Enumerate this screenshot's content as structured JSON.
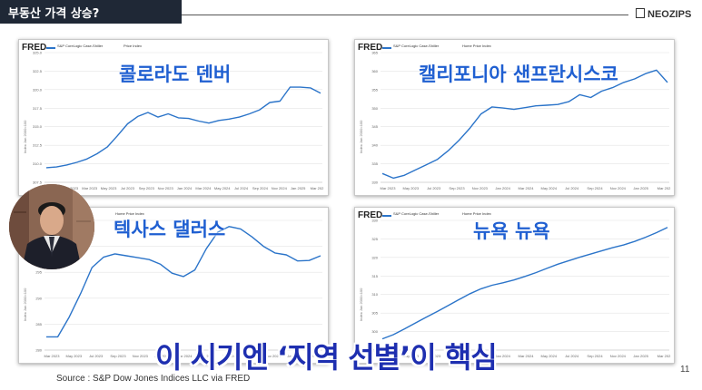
{
  "header": {
    "title": "부동산 가격 상승?",
    "brand": "NEOZIPS"
  },
  "caption": "이 시기엔 ‘지역 선별’이 핵심",
  "source": "Source : S&P Dow Jones Indices LLC via FRED",
  "page_number": "11",
  "colors": {
    "line": "#2b74c9",
    "caption": "#1e2fb0",
    "label": "#1f5fd1",
    "header_bg": "#1f2836"
  },
  "charts": [
    {
      "label": "콜로라도 덴버",
      "fred": "FRED",
      "series_name": "S&P CoreLogic Case-Shiller",
      "legend_extra": "Price Index",
      "x_ticks": [
        "Nov 2022",
        "Jan 2023",
        "Mar 2023",
        "May 2023",
        "Jul 2023",
        "Sep 2023",
        "Nov 2023",
        "Jan 2024",
        "Mar 2024",
        "May 2024",
        "Jul 2024",
        "Sep 2024",
        "Nov 2024",
        "Jan 2025",
        "Mar 202"
      ],
      "y_ticks": [
        "325.0",
        "322.5",
        "320.0",
        "317.5",
        "315.0",
        "312.5",
        "310.0",
        "307.5"
      ],
      "y_title": "Index Jan 2000=100"
    },
    {
      "label": "캘리포니아 샌프란시스코",
      "fred": "FRED",
      "series_name": "S&P CoreLogic Case-Shiller",
      "legend_extra": "Home Price Index",
      "x_ticks": [
        "Mar 2023",
        "May 2023",
        "Jul 2023",
        "Sep 2023",
        "Nov 2023",
        "Jan 2024",
        "Mar 2024",
        "May 2024",
        "Jul 2024",
        "Sep 2024",
        "Nov 2024",
        "Jan 2025",
        "Mar 202"
      ],
      "y_ticks": [
        "365",
        "360",
        "355",
        "350",
        "345",
        "340",
        "335",
        "330"
      ],
      "y_title": "Index Jan 2000=100"
    },
    {
      "label": "텍사스 댈러스",
      "fred": "",
      "series_name": "Home Price Index",
      "legend_extra": "",
      "x_ticks": [
        "Mar 2023",
        "May 2023",
        "Jul 2023",
        "Sep 2023",
        "Nov 2023",
        "Jan 2024",
        "Mar 2024",
        "May 2024",
        "Jul 2024",
        "Sep 2024",
        "Nov 2024",
        "Jan 2025",
        "Mar 202"
      ],
      "y_ticks": [
        "305",
        "300",
        "295",
        "290",
        "285",
        "280"
      ],
      "y_title": "Index Jan 2000=100"
    },
    {
      "label": "뉴욕 뉴욕",
      "fred": "FRED",
      "series_name": "S&P CoreLogic Case-Shiller",
      "legend_extra": "Home Price Index",
      "x_ticks": [
        "Mar 2023",
        "May 2023",
        "Jul 2023",
        "Sep 2023",
        "Nov 2023",
        "Jan 2024",
        "Mar 2024",
        "May 2024",
        "Jul 2024",
        "Sep 2024",
        "Nov 2024",
        "Jan 2025",
        "Mar 202"
      ],
      "y_ticks": [
        "330",
        "325",
        "320",
        "315",
        "310",
        "305",
        "300",
        "295"
      ],
      "y_title": "Index Jan 2000=100"
    }
  ],
  "chart_data": [
    {
      "type": "line",
      "title": "콜로라도 덴버",
      "ylabel": "Index Jan 2000=100",
      "ylim": [
        306,
        325.5
      ],
      "series": [
        {
          "name": "S&P CoreLogic Case-Shiller",
          "values": [
            308.2,
            308.3,
            308.6,
            309,
            309.5,
            310.3,
            311.3,
            313,
            314.8,
            315.9,
            316.5,
            315.8,
            316.3,
            315.7,
            315.6,
            315.2,
            314.9,
            315.3,
            315.5,
            315.8,
            316.3,
            316.9,
            318,
            318.2,
            320.3,
            320.3,
            320.2,
            319.4
          ]
        }
      ]
    },
    {
      "type": "line",
      "title": "캘리포니아 샌프란시스코",
      "ylabel": "Index Jan 2000=100",
      "ylim": [
        329,
        366
      ],
      "series": [
        {
          "name": "S&P CoreLogic Case-Shiller",
          "values": [
            331.5,
            330.2,
            331,
            332.5,
            334,
            335.5,
            338,
            341,
            344.5,
            348.5,
            350.5,
            350.2,
            349.8,
            350.3,
            350.8,
            351,
            351.2,
            352,
            354,
            353.2,
            355,
            356,
            357.5,
            358.5,
            360,
            361,
            357.5
          ]
        }
      ]
    },
    {
      "type": "line",
      "title": "텍사스 댈러스",
      "ylabel": "Index Jan 2000=100",
      "ylim": [
        279,
        306.5
      ],
      "series": [
        {
          "name": "Home Price Index",
          "values": [
            281.8,
            281.8,
            286,
            291,
            296.5,
            298.7,
            299.4,
            299,
            298.6,
            298.2,
            297.2,
            295.3,
            294.6,
            296,
            300.5,
            304,
            305.2,
            304.7,
            303,
            301,
            299.6,
            299.2,
            297.9,
            298,
            299
          ]
        }
      ]
    },
    {
      "type": "line",
      "title": "뉴욕 뉴욕",
      "ylabel": "Index Jan 2000=100",
      "ylim": [
        294,
        331
      ],
      "series": [
        {
          "name": "S&P CoreLogic Case-Shiller",
          "values": [
            297.2,
            298.4,
            300,
            301.7,
            303.4,
            305,
            306.7,
            308.4,
            310.1,
            311.5,
            312.5,
            313.2,
            314,
            315,
            316.1,
            317.3,
            318.5,
            319.5,
            320.5,
            321.4,
            322.3,
            323.2,
            324,
            325,
            326.2,
            327.5,
            329
          ]
        }
      ]
    }
  ]
}
